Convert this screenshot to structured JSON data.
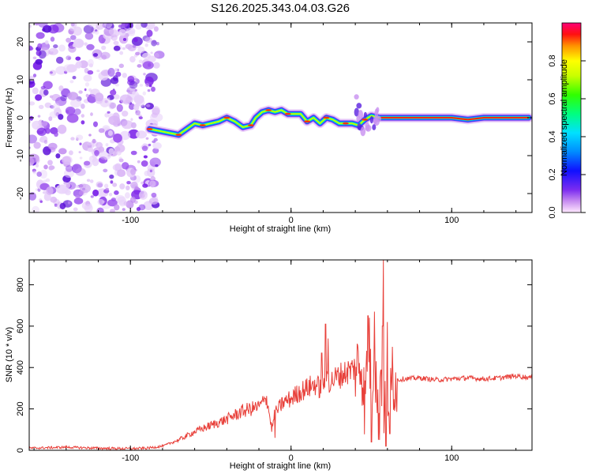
{
  "title": "S126.2025.343.04.03.G26",
  "chart_data": [
    {
      "type": "heatmap",
      "name": "spectrogram",
      "xlabel": "Height of straight line (km)",
      "ylabel": "Frequency (Hz)",
      "xlim": [
        -163,
        150
      ],
      "ylim": [
        -25,
        25
      ],
      "xticks": [
        "-100",
        "0",
        "100"
      ],
      "xtick_values": [
        -100,
        0,
        100
      ],
      "yticks": [
        "-20",
        "-10",
        "0",
        "10",
        "20"
      ],
      "ytick_values": [
        -20,
        -10,
        0,
        10,
        20
      ],
      "noise_region_x": [
        -163,
        -80
      ],
      "signal_ridge": {
        "x": [
          -88,
          -82,
          -76,
          -70,
          -65,
          -60,
          -55,
          -50,
          -45,
          -40,
          -35,
          -30,
          -25,
          -22,
          -18,
          -14,
          -10,
          -6,
          -2,
          2,
          6,
          10,
          14,
          18,
          22,
          26,
          30,
          34,
          38,
          42,
          46,
          50,
          55,
          60,
          70,
          80,
          90,
          100,
          110,
          120,
          130,
          140,
          148
        ],
        "y": [
          -3,
          -3.5,
          -4,
          -4.5,
          -3,
          -1.5,
          -2,
          -1.5,
          -1,
          0,
          -1,
          -2.5,
          -2,
          0,
          1.5,
          2,
          1.5,
          2,
          1,
          1,
          1,
          -1,
          0,
          -1.5,
          0,
          -0.5,
          -1.5,
          -1.5,
          -1.5,
          -2,
          -0.5,
          0.5,
          0,
          0,
          0,
          0,
          0,
          0,
          -0.5,
          0,
          0,
          0,
          0
        ]
      }
    },
    {
      "type": "colorbar",
      "name": "colorbar",
      "label": "Normalized spectral amplitude",
      "range": [
        0,
        1
      ],
      "ticks": [
        "0.0",
        "0.2",
        "0.4",
        "0.6",
        "0.8"
      ],
      "tick_values": [
        0,
        0.2,
        0.4,
        0.6,
        0.8
      ]
    },
    {
      "type": "line",
      "name": "snr",
      "xlabel": "Height of straight line (km)",
      "ylabel": "SNR (10 * v/v)",
      "xlim": [
        -163,
        150
      ],
      "ylim": [
        0,
        920
      ],
      "xticks": [
        "-100",
        "0",
        "100"
      ],
      "xtick_values": [
        -100,
        0,
        100
      ],
      "yticks": [
        "0",
        "200",
        "400",
        "600",
        "800"
      ],
      "ytick_values": [
        0,
        200,
        400,
        600,
        800
      ],
      "color": "#e8403a",
      "x": [
        -163,
        -140,
        -120,
        -100,
        -90,
        -80,
        -70,
        -60,
        -50,
        -40,
        -30,
        -20,
        -15,
        -12,
        -10,
        -8,
        -5,
        0,
        5,
        10,
        15,
        18,
        20,
        22,
        24,
        26,
        30,
        35,
        40,
        44,
        46,
        48,
        50,
        52,
        54,
        56,
        58,
        60,
        62,
        64,
        66,
        70,
        80,
        90,
        100,
        110,
        120,
        130,
        140,
        150
      ],
      "y": [
        10,
        15,
        10,
        8,
        10,
        20,
        50,
        90,
        120,
        150,
        190,
        210,
        250,
        100,
        180,
        200,
        230,
        250,
        280,
        300,
        320,
        300,
        330,
        360,
        330,
        340,
        360,
        380,
        400,
        420,
        200,
        600,
        300,
        500,
        150,
        400,
        200,
        300,
        250,
        350,
        340,
        345,
        350,
        340,
        345,
        350,
        345,
        350,
        360,
        350
      ],
      "spikes": [
        {
          "x": 21.5,
          "y": 610
        },
        {
          "x": 23,
          "y": 540
        },
        {
          "x": 19,
          "y": 470
        },
        {
          "x": 48,
          "y": 650
        },
        {
          "x": 50,
          "y": 40
        },
        {
          "x": 52,
          "y": 670
        },
        {
          "x": 55,
          "y": 50
        },
        {
          "x": 57,
          "y": 600
        },
        {
          "x": 57.5,
          "y": 920
        },
        {
          "x": 59,
          "y": 20
        },
        {
          "x": 60,
          "y": 620
        },
        {
          "x": 61.5,
          "y": 80
        },
        {
          "x": 63,
          "y": 500
        },
        {
          "x": -16,
          "y": 250
        },
        {
          "x": -10,
          "y": 60
        }
      ]
    }
  ]
}
